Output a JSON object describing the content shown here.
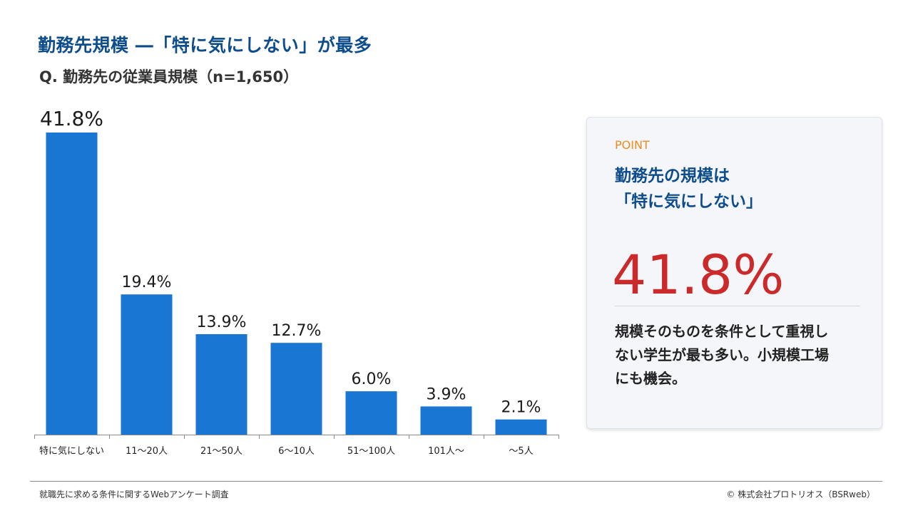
{
  "header": {
    "title": "勤務先規模 ―「特に気にしない」が最多",
    "question": "Q. 勤務先の従業員規模（n=1,650）"
  },
  "chart_data": {
    "type": "bar",
    "categories": [
      "特に気にしない",
      "11～20人",
      "21～50人",
      "6～10人",
      "51～100人",
      "101人～",
      "～5人"
    ],
    "values": [
      41.8,
      19.4,
      13.9,
      12.7,
      6.0,
      3.9,
      2.1
    ],
    "value_labels": [
      "41.8%",
      "19.4%",
      "13.9%",
      "12.7%",
      "6.0%",
      "3.9%",
      "2.1%"
    ],
    "unit": "%",
    "ylim": [
      0,
      41.8
    ],
    "grid": false,
    "bar_color": "#1976d2"
  },
  "point": {
    "label": "POINT",
    "heading_line1": "勤務先の規模は",
    "heading_line2": "「特に気にしない」",
    "value": "41.8%",
    "body_line1": "規模そのものを条件として重視し",
    "body_line2": "ない学生が最も多い。小規模工場",
    "body_line3": "にも機会。"
  },
  "footer": {
    "source": "就職先に求める条件に関するWebアンケート調査",
    "copyright": "©  株式会社プロトリオス（BSRweb）"
  },
  "colors": {
    "title": "#0e4d8c",
    "accent_orange": "#f08c1e",
    "highlight_red": "#cc2a2a",
    "bar": "#1976d2"
  }
}
